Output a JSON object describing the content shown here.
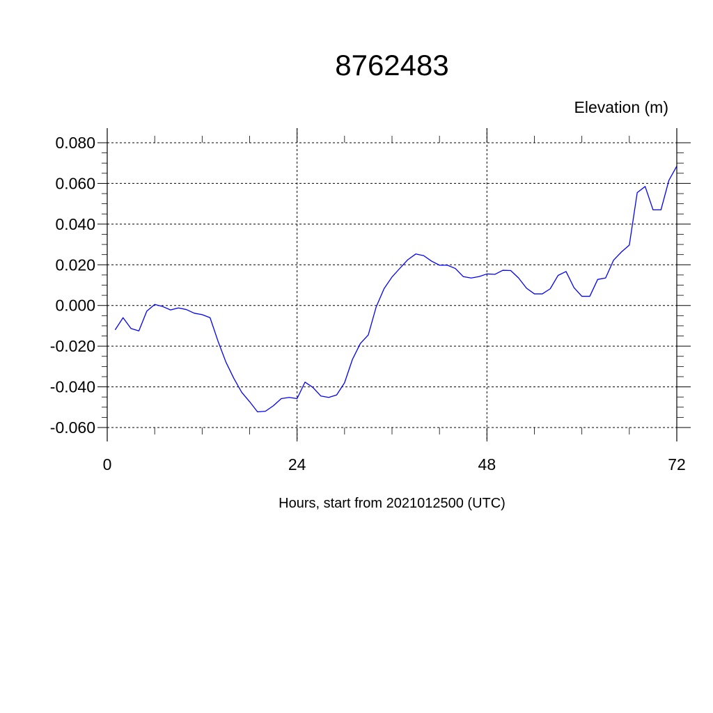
{
  "chart_data": {
    "type": "line",
    "title": "8762483",
    "ylabel": "Elevation (m)",
    "xlabel": "Hours, start from 2021012500 (UTC)",
    "xlim": [
      0,
      72
    ],
    "ylim": [
      -0.06,
      0.08
    ],
    "x_ticks": [
      0,
      24,
      48,
      72
    ],
    "x_tick_labels": [
      "0",
      "24",
      "48",
      "72"
    ],
    "y_ticks": [
      -0.06,
      -0.04,
      -0.02,
      0.0,
      0.02,
      0.04,
      0.06,
      0.08
    ],
    "y_tick_labels": [
      "-0.060",
      "-0.040",
      "-0.020",
      "0.000",
      "0.020",
      "0.040",
      "0.060",
      "0.080"
    ],
    "grid": true,
    "colors": {
      "series": "#0000ff",
      "axis": "#000000",
      "grid": "#000000"
    },
    "series": [
      {
        "x": [
          1,
          2,
          3,
          4,
          5,
          6,
          7,
          8,
          9,
          10,
          11,
          12,
          13,
          14,
          15,
          16,
          17,
          18,
          19,
          20,
          21,
          22,
          23,
          24,
          25,
          26,
          27,
          28,
          29,
          30,
          31,
          32,
          33,
          34,
          35,
          36,
          37,
          38,
          39,
          40,
          41,
          42,
          43,
          44,
          45,
          46,
          47,
          48,
          49,
          50,
          51,
          52,
          53,
          54,
          55,
          56,
          57,
          58,
          59,
          60,
          61,
          62,
          63,
          64,
          65,
          66,
          67,
          68,
          69,
          70,
          71,
          72
        ],
        "y": [
          -0.012,
          -0.006,
          -0.0113,
          -0.0125,
          -0.0028,
          0.0005,
          -0.0005,
          -0.0022,
          -0.0012,
          -0.002,
          -0.0038,
          -0.0045,
          -0.006,
          -0.0175,
          -0.0278,
          -0.0358,
          -0.0427,
          -0.0473,
          -0.0523,
          -0.052,
          -0.0493,
          -0.0458,
          -0.0452,
          -0.0458,
          -0.0377,
          -0.0403,
          -0.0445,
          -0.0452,
          -0.044,
          -0.038,
          -0.0265,
          -0.0187,
          -0.0145,
          -0.0007,
          0.0083,
          0.014,
          0.0183,
          0.0225,
          0.0253,
          0.0245,
          0.0218,
          0.0198,
          0.0198,
          0.0182,
          0.0142,
          0.0135,
          0.0142,
          0.0155,
          0.0153,
          0.0173,
          0.0172,
          0.0135,
          0.0085,
          0.0057,
          0.0057,
          0.0082,
          0.0148,
          0.0167,
          0.0088,
          0.0045,
          0.0045,
          0.0128,
          0.0135,
          0.0222,
          0.0263,
          0.0297,
          0.0555,
          0.0585,
          0.047,
          0.047,
          0.0615,
          0.0685
        ]
      }
    ]
  }
}
